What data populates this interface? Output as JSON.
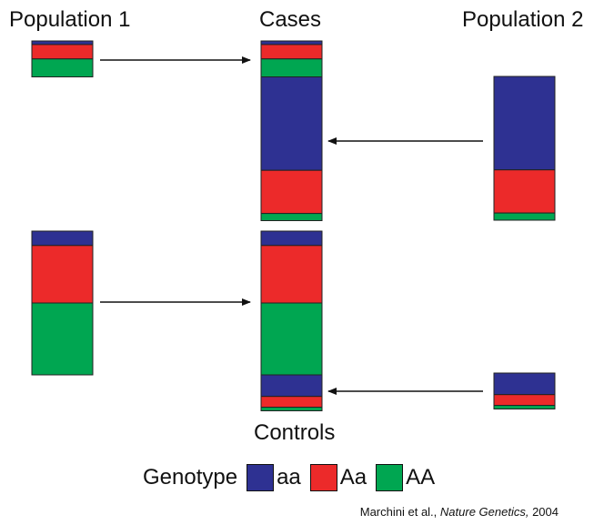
{
  "labels": {
    "population1": "Population 1",
    "cases": "Cases",
    "population2": "Population 2",
    "controls": "Controls"
  },
  "legend": {
    "title": "Genotype",
    "items": [
      {
        "name": "aa",
        "color": "#2E3192"
      },
      {
        "name": "Aa",
        "color": "#EC2A2A"
      },
      {
        "name": "AA",
        "color": "#00A651"
      }
    ]
  },
  "citation": {
    "authors": "Marchini et al., ",
    "journal": "Nature Genetics,",
    "year": " 2004"
  },
  "bars": {
    "pop1_cases": [
      {
        "genotype": "aa",
        "amount": 1
      },
      {
        "genotype": "Aa",
        "amount": 4
      },
      {
        "genotype": "AA",
        "amount": 5
      }
    ],
    "pop1_controls": [
      {
        "genotype": "aa",
        "amount": 4
      },
      {
        "genotype": "Aa",
        "amount": 16
      },
      {
        "genotype": "AA",
        "amount": 20
      }
    ],
    "pop2_cases": [
      {
        "genotype": "aa",
        "amount": 26
      },
      {
        "genotype": "Aa",
        "amount": 12
      },
      {
        "genotype": "AA",
        "amount": 2
      }
    ],
    "pop2_controls": [
      {
        "genotype": "aa",
        "amount": 6
      },
      {
        "genotype": "Aa",
        "amount": 3
      },
      {
        "genotype": "AA",
        "amount": 1
      }
    ],
    "cases_combined": [
      {
        "genotype": "aa",
        "amount": 1
      },
      {
        "genotype": "Aa",
        "amount": 4
      },
      {
        "genotype": "AA",
        "amount": 5
      },
      {
        "genotype": "aa",
        "amount": 26
      },
      {
        "genotype": "Aa",
        "amount": 12
      },
      {
        "genotype": "AA",
        "amount": 2
      }
    ],
    "controls_combined": [
      {
        "genotype": "aa",
        "amount": 4
      },
      {
        "genotype": "Aa",
        "amount": 16
      },
      {
        "genotype": "AA",
        "amount": 20
      },
      {
        "genotype": "aa",
        "amount": 6
      },
      {
        "genotype": "Aa",
        "amount": 3
      },
      {
        "genotype": "AA",
        "amount": 1
      }
    ]
  }
}
